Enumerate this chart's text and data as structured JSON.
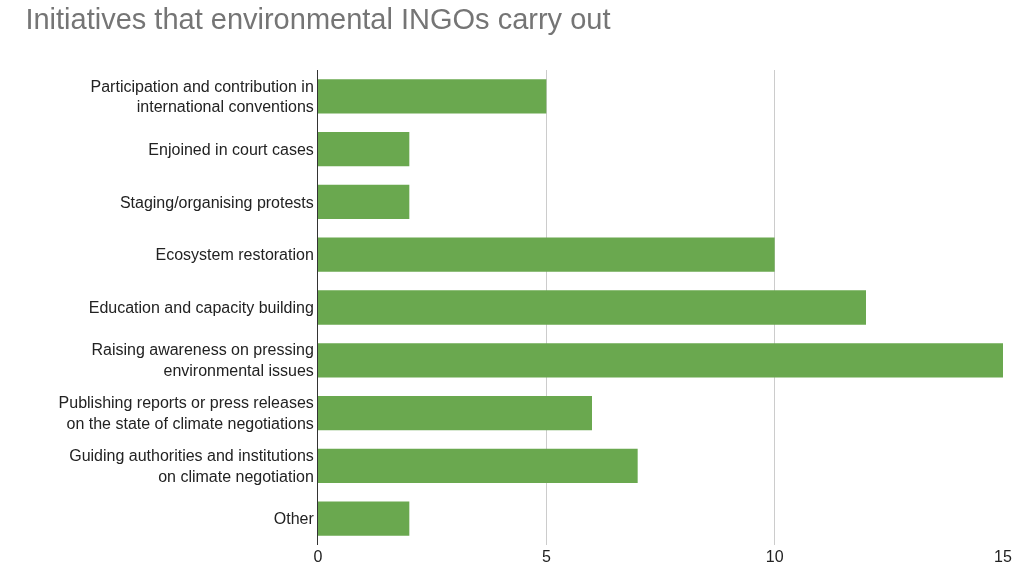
{
  "chart_data": {
    "type": "bar",
    "orientation": "horizontal",
    "title": "Initiatives that environmental INGOs carry out",
    "categories": [
      "Participation and contribution in international conventions",
      "Enjoined in court cases",
      "Staging/organising protests",
      "Ecosystem restoration",
      "Education and capacity building",
      "Raising awareness on pressing environmental issues",
      "Publishing reports or press releases on the state of climate negotiations",
      "Guiding authorities and institutions on climate negotiation",
      "Other"
    ],
    "values": [
      5,
      2,
      2,
      10,
      12,
      15,
      6,
      7,
      2
    ],
    "color": "#6aa84f",
    "xlim": [
      0,
      15
    ],
    "xticks": [
      0,
      5,
      10,
      15
    ],
    "grid": "x",
    "legend": false
  }
}
